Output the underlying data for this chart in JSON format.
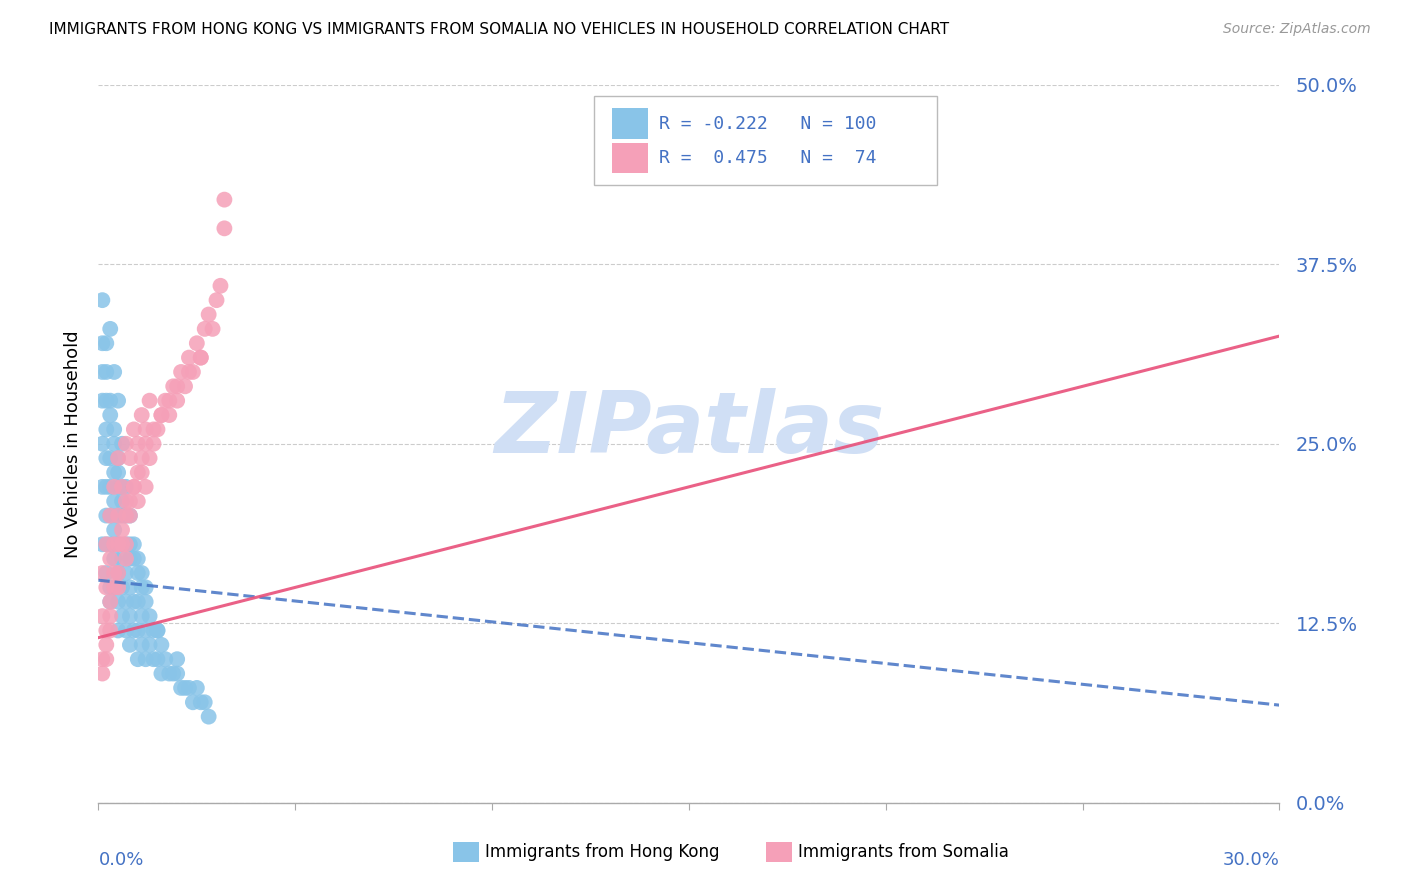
{
  "title": "IMMIGRANTS FROM HONG KONG VS IMMIGRANTS FROM SOMALIA NO VEHICLES IN HOUSEHOLD CORRELATION CHART",
  "source": "Source: ZipAtlas.com",
  "ylabel_label": "No Vehicles in Household",
  "r_hk": -0.222,
  "n_hk": 100,
  "r_som": 0.475,
  "n_som": 74,
  "hk_color": "#89C4E8",
  "som_color": "#F5A0B8",
  "hk_line_color": "#4472C4",
  "som_line_color": "#E8507A",
  "watermark": "ZIPatlas",
  "watermark_color": "#D0DFF5",
  "xlim": [
    0,
    0.3
  ],
  "ylim": [
    0,
    0.5
  ],
  "yticks": [
    0.0,
    0.125,
    0.25,
    0.375,
    0.5
  ],
  "ytick_labels": [
    "0.0%",
    "12.5%",
    "25.0%",
    "37.5%",
    "50.0%"
  ],
  "hk_x": [
    0.001,
    0.001,
    0.001,
    0.001,
    0.001,
    0.002,
    0.002,
    0.002,
    0.002,
    0.002,
    0.002,
    0.002,
    0.003,
    0.003,
    0.003,
    0.003,
    0.003,
    0.003,
    0.003,
    0.004,
    0.004,
    0.004,
    0.004,
    0.004,
    0.004,
    0.005,
    0.005,
    0.005,
    0.005,
    0.005,
    0.005,
    0.005,
    0.006,
    0.006,
    0.006,
    0.006,
    0.006,
    0.007,
    0.007,
    0.007,
    0.007,
    0.007,
    0.008,
    0.008,
    0.008,
    0.008,
    0.008,
    0.009,
    0.009,
    0.009,
    0.01,
    0.01,
    0.01,
    0.01,
    0.011,
    0.011,
    0.011,
    0.012,
    0.012,
    0.012,
    0.013,
    0.013,
    0.014,
    0.014,
    0.015,
    0.015,
    0.016,
    0.016,
    0.017,
    0.018,
    0.019,
    0.02,
    0.021,
    0.022,
    0.023,
    0.024,
    0.025,
    0.026,
    0.027,
    0.028,
    0.001,
    0.001,
    0.002,
    0.002,
    0.003,
    0.003,
    0.004,
    0.004,
    0.005,
    0.005,
    0.006,
    0.006,
    0.007,
    0.008,
    0.009,
    0.01,
    0.011,
    0.012,
    0.015,
    0.02
  ],
  "hk_y": [
    0.28,
    0.22,
    0.18,
    0.32,
    0.25,
    0.2,
    0.26,
    0.18,
    0.3,
    0.22,
    0.24,
    0.16,
    0.28,
    0.2,
    0.24,
    0.18,
    0.15,
    0.22,
    0.14,
    0.26,
    0.19,
    0.23,
    0.17,
    0.21,
    0.15,
    0.24,
    0.18,
    0.22,
    0.16,
    0.2,
    0.14,
    0.12,
    0.22,
    0.17,
    0.2,
    0.15,
    0.13,
    0.2,
    0.16,
    0.18,
    0.14,
    0.12,
    0.18,
    0.15,
    0.17,
    0.13,
    0.11,
    0.17,
    0.14,
    0.12,
    0.16,
    0.14,
    0.12,
    0.1,
    0.15,
    0.13,
    0.11,
    0.14,
    0.12,
    0.1,
    0.13,
    0.11,
    0.12,
    0.1,
    0.12,
    0.1,
    0.11,
    0.09,
    0.1,
    0.09,
    0.09,
    0.09,
    0.08,
    0.08,
    0.08,
    0.07,
    0.08,
    0.07,
    0.07,
    0.06,
    0.35,
    0.3,
    0.32,
    0.28,
    0.33,
    0.27,
    0.3,
    0.25,
    0.28,
    0.23,
    0.25,
    0.21,
    0.22,
    0.2,
    0.18,
    0.17,
    0.16,
    0.15,
    0.12,
    0.1
  ],
  "som_x": [
    0.001,
    0.001,
    0.001,
    0.002,
    0.002,
    0.002,
    0.003,
    0.003,
    0.003,
    0.004,
    0.004,
    0.004,
    0.005,
    0.005,
    0.005,
    0.006,
    0.006,
    0.007,
    0.007,
    0.007,
    0.008,
    0.008,
    0.009,
    0.009,
    0.01,
    0.01,
    0.011,
    0.011,
    0.012,
    0.012,
    0.013,
    0.013,
    0.014,
    0.015,
    0.016,
    0.017,
    0.018,
    0.019,
    0.02,
    0.021,
    0.022,
    0.023,
    0.024,
    0.025,
    0.026,
    0.027,
    0.028,
    0.03,
    0.031,
    0.032,
    0.001,
    0.002,
    0.003,
    0.004,
    0.005,
    0.006,
    0.007,
    0.008,
    0.009,
    0.01,
    0.011,
    0.012,
    0.014,
    0.016,
    0.018,
    0.02,
    0.023,
    0.026,
    0.029,
    0.032,
    0.002,
    0.003,
    0.005,
    0.007
  ],
  "som_y": [
    0.1,
    0.13,
    0.16,
    0.12,
    0.15,
    0.18,
    0.13,
    0.17,
    0.2,
    0.15,
    0.18,
    0.22,
    0.16,
    0.2,
    0.24,
    0.18,
    0.22,
    0.17,
    0.21,
    0.25,
    0.2,
    0.24,
    0.22,
    0.26,
    0.21,
    0.25,
    0.23,
    0.27,
    0.22,
    0.26,
    0.24,
    0.28,
    0.25,
    0.26,
    0.27,
    0.28,
    0.27,
    0.29,
    0.28,
    0.3,
    0.29,
    0.31,
    0.3,
    0.32,
    0.31,
    0.33,
    0.34,
    0.35,
    0.36,
    0.4,
    0.09,
    0.11,
    0.14,
    0.16,
    0.18,
    0.19,
    0.2,
    0.21,
    0.22,
    0.23,
    0.24,
    0.25,
    0.26,
    0.27,
    0.28,
    0.29,
    0.3,
    0.31,
    0.33,
    0.42,
    0.1,
    0.12,
    0.15,
    0.18
  ],
  "hk_line_x": [
    0.0,
    0.3
  ],
  "hk_line_y": [
    0.155,
    0.068
  ],
  "som_line_x": [
    0.0,
    0.3
  ],
  "som_line_y": [
    0.115,
    0.325
  ]
}
